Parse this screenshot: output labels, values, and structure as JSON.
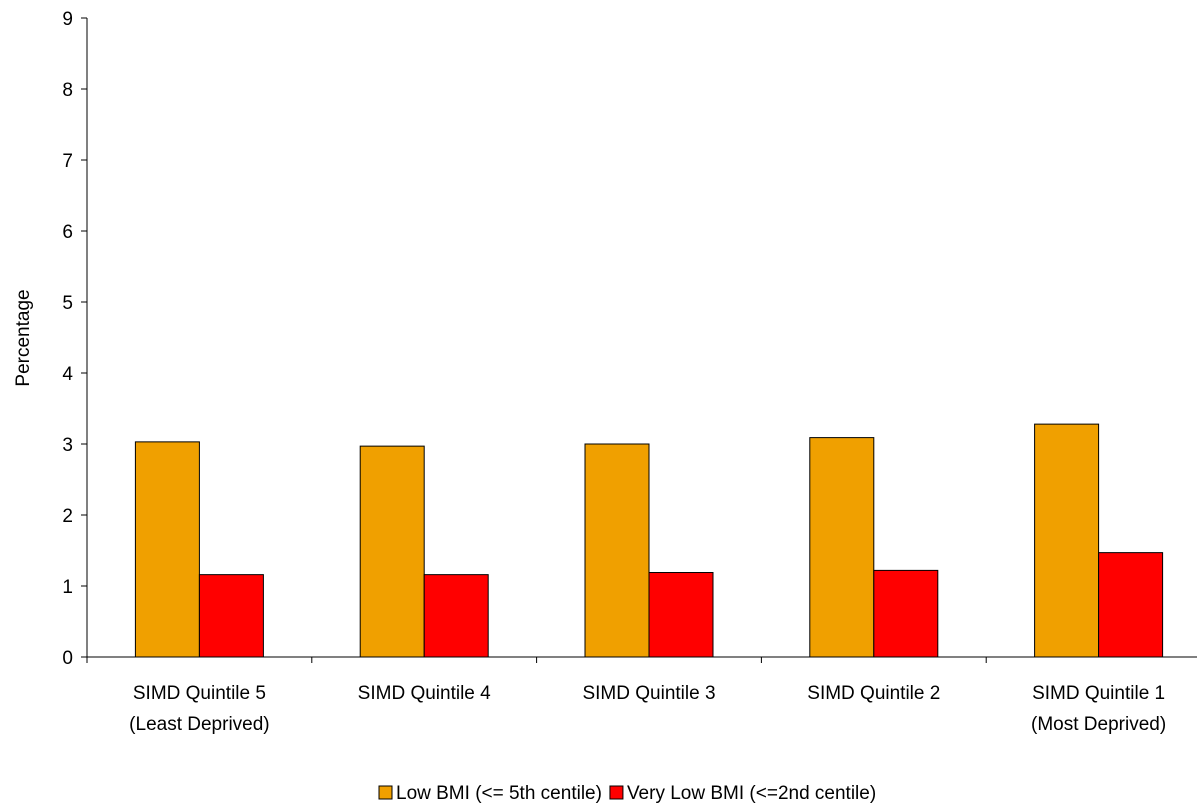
{
  "chart_data": {
    "type": "bar",
    "title": "",
    "xlabel": "",
    "ylabel": "Percentage",
    "ylim": [
      0,
      9
    ],
    "yticks": [
      "0",
      "1",
      "2",
      "3",
      "4",
      "5",
      "6",
      "7",
      "8",
      "9"
    ],
    "categories": [
      [
        "SIMD Quintile 5",
        "(Least Deprived)"
      ],
      [
        "SIMD Quintile 4"
      ],
      [
        "SIMD Quintile 3"
      ],
      [
        "SIMD Quintile 2"
      ],
      [
        "SIMD Quintile 1",
        "(Most Deprived)"
      ]
    ],
    "series": [
      {
        "name": "Low BMI (<= 5th centile)",
        "color": "#f0a000",
        "values": [
          3.03,
          2.97,
          3.0,
          3.09,
          3.28
        ]
      },
      {
        "name": "Very Low BMI (<=2nd centile)",
        "color": "#ff0000",
        "values": [
          1.16,
          1.16,
          1.19,
          1.22,
          1.47
        ]
      }
    ],
    "grid": false,
    "legend_position": "bottom"
  }
}
